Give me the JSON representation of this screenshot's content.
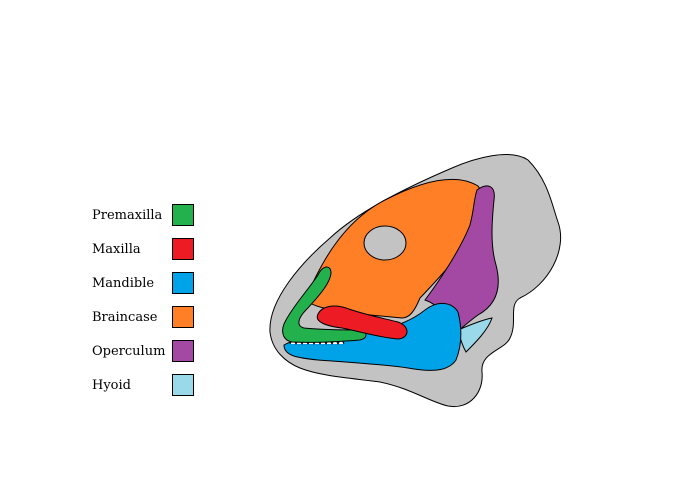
{
  "legend": {
    "items": [
      {
        "label": "Premaxilla",
        "color": "#22b14c"
      },
      {
        "label": "Maxilla",
        "color": "#ed1c24"
      },
      {
        "label": "Mandible",
        "color": "#00a2e8"
      },
      {
        "label": "Braincase",
        "color": "#ff7f27"
      },
      {
        "label": "Operculum",
        "color": "#a349a4"
      },
      {
        "label": "Hyoid",
        "color": "#99d9ea"
      }
    ]
  },
  "colors": {
    "background": "#ffffff",
    "outline": "#c3c3c3",
    "premaxilla": "#22b14c",
    "maxilla": "#ed1c24",
    "mandible": "#00a2e8",
    "braincase": "#ff7f27",
    "operculum": "#a349a4",
    "hyoid": "#99d9ea"
  }
}
